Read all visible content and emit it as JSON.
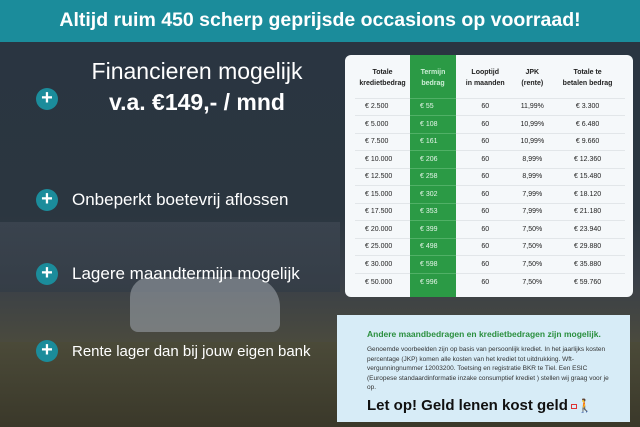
{
  "header": {
    "title": "Altijd ruim 450 scherp geprijsde occasions op voorraad!"
  },
  "features": [
    {
      "icon": "plus-icon",
      "line1": "Financieren mogelijk",
      "line2": "v.a. €149,- / mnd"
    },
    {
      "icon": "plus-icon",
      "text": "Onbeperkt boetevrij aflossen"
    },
    {
      "icon": "plus-icon",
      "text": "Lagere maandtermijn mogelijk"
    },
    {
      "icon": "plus-icon",
      "text": "Rente lager dan bij jouw eigen bank"
    }
  ],
  "colors": {
    "teal": "#1b8c9b",
    "green": "#2b9a45"
  },
  "table": {
    "headers": [
      [
        "Totale",
        "kredietbedrag"
      ],
      [
        "Termijn",
        "bedrag"
      ],
      [
        "Looptijd",
        "in maanden"
      ],
      [
        "JPK",
        "(rente)"
      ],
      [
        "Totale te",
        "betalen bedrag"
      ]
    ],
    "rows": [
      [
        "€ 2.500",
        "€ 55",
        "60",
        "11,99%",
        "€ 3.300"
      ],
      [
        "€ 5.000",
        "€ 108",
        "60",
        "10,99%",
        "€ 6.480"
      ],
      [
        "€ 7.500",
        "€ 161",
        "60",
        "10,99%",
        "€ 9.660"
      ],
      [
        "€ 10.000",
        "€ 206",
        "60",
        "8,99%",
        "€ 12.360"
      ],
      [
        "€ 12.500",
        "€ 258",
        "60",
        "8,99%",
        "€ 15.480"
      ],
      [
        "€ 15.000",
        "€ 302",
        "60",
        "7,99%",
        "€ 18.120"
      ],
      [
        "€ 17.500",
        "€ 353",
        "60",
        "7,99%",
        "€ 21.180"
      ],
      [
        "€ 20.000",
        "€ 399",
        "60",
        "7,50%",
        "€ 23.940"
      ],
      [
        "€ 25.000",
        "€ 498",
        "60",
        "7,50%",
        "€ 29.880"
      ],
      [
        "€ 30.000",
        "€ 598",
        "60",
        "7,50%",
        "€ 35.880"
      ],
      [
        "€ 50.000",
        "€ 996",
        "60",
        "7,50%",
        "€ 59.760"
      ]
    ]
  },
  "info": {
    "heading": "Andere maandbedragen en kredietbedragen zijn mogelijk.",
    "body": "Genoemde voorbeelden zijn op basis van persoonlijk krediet. In het jaarlijks kosten percentage (JKP) komen alle kosten van het krediet tot uitdrukking. Wft-vergunningnummer 12003200. Toetsing en registratie BKR te Tiel. Een ESIC (Europese standaardinformatie inzake consumptief krediet ) stellen wij graag voor je op.",
    "warning": "Let op! Geld lenen kost geld",
    "warning_icon": "walking-person-with-weight-icon"
  }
}
